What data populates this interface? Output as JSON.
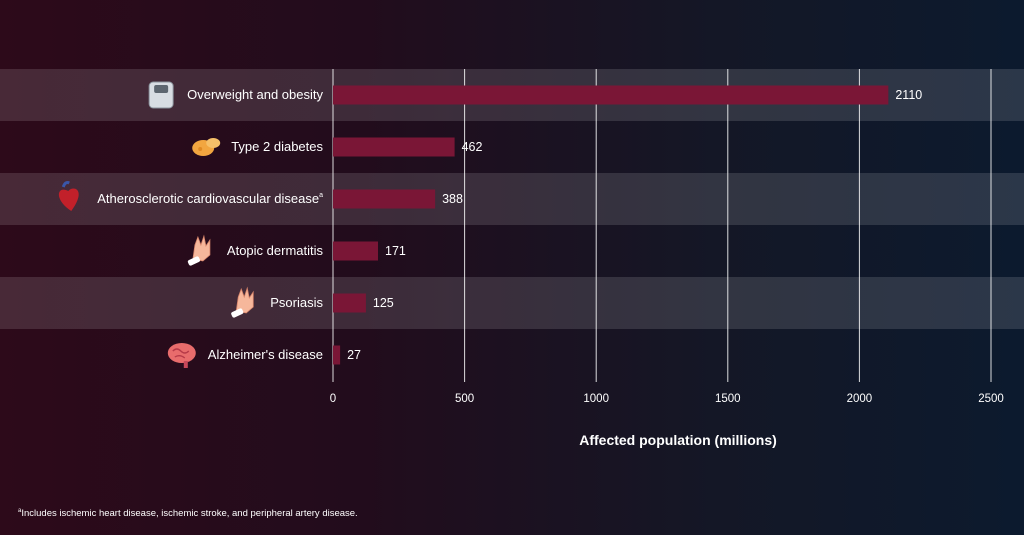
{
  "chart_data": {
    "type": "bar",
    "orientation": "horizontal",
    "categories": [
      "Overweight and obesity",
      "Type 2 diabetes",
      "Atherosclerotic cardiovascular disease",
      "Atopic dermatitis",
      "Psoriasis",
      "Alzheimer's disease"
    ],
    "category_markers": [
      "",
      "",
      "a",
      "",
      "",
      ""
    ],
    "category_icons": [
      "scale-icon",
      "pancreas-icon",
      "heart-icon",
      "hand-icon",
      "hand-icon",
      "brain-icon"
    ],
    "values": [
      2110,
      462,
      388,
      171,
      125,
      27
    ],
    "value_labels": [
      "2110",
      "462",
      "388",
      "171",
      "125",
      "27"
    ],
    "xlabel": "Affected population (millions)",
    "xlim": [
      0,
      2500
    ],
    "xticks": [
      0,
      500,
      1000,
      1500,
      2000,
      2500
    ],
    "grid": true,
    "bar_color": "#7a1636"
  },
  "footnote": {
    "marker": "a",
    "text": "Includes ischemic heart disease, ischemic stroke, and peripheral artery disease."
  }
}
